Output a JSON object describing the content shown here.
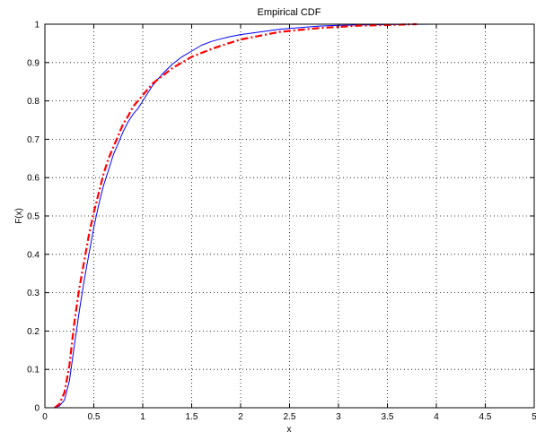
{
  "chart_data": {
    "type": "line",
    "title": "Empirical CDF",
    "xlabel": "x",
    "ylabel": "F(x)",
    "xlim": [
      0,
      5
    ],
    "ylim": [
      0,
      1
    ],
    "xticks": [
      "0",
      "0.5",
      "1",
      "1.5",
      "2",
      "2.5",
      "3",
      "3.5",
      "4",
      "4.5",
      "5"
    ],
    "yticks": [
      "0",
      "0.1",
      "0.2",
      "0.3",
      "0.4",
      "0.5",
      "0.6",
      "0.7",
      "0.8",
      "0.9",
      "1"
    ],
    "grid": true,
    "legend": "none",
    "series": [
      {
        "color": "#0000ff",
        "style": "solid",
        "x": [
          0.1,
          0.15,
          0.2,
          0.25,
          0.3,
          0.35,
          0.4,
          0.45,
          0.5,
          0.55,
          0.6,
          0.65,
          0.7,
          0.75,
          0.8,
          0.85,
          0.9,
          0.95,
          1.0,
          1.1,
          1.2,
          1.3,
          1.4,
          1.5,
          1.6,
          1.7,
          1.8,
          1.9,
          2.0,
          2.2,
          2.4,
          2.6,
          2.8,
          3.0,
          3.2,
          3.5,
          4.0,
          4.5
        ],
        "y": [
          0.0,
          0.005,
          0.02,
          0.07,
          0.16,
          0.25,
          0.33,
          0.4,
          0.47,
          0.53,
          0.58,
          0.62,
          0.66,
          0.69,
          0.72,
          0.745,
          0.765,
          0.78,
          0.8,
          0.84,
          0.87,
          0.895,
          0.915,
          0.93,
          0.945,
          0.955,
          0.962,
          0.968,
          0.973,
          0.98,
          0.987,
          0.991,
          0.995,
          0.997,
          0.998,
          0.999,
          1.0,
          1.0
        ]
      },
      {
        "color": "#ff0000",
        "style": "dashdot",
        "x": [
          0.1,
          0.15,
          0.2,
          0.25,
          0.3,
          0.35,
          0.4,
          0.45,
          0.5,
          0.55,
          0.6,
          0.65,
          0.7,
          0.75,
          0.8,
          0.85,
          0.9,
          0.95,
          1.0,
          1.1,
          1.2,
          1.3,
          1.4,
          1.5,
          1.6,
          1.7,
          1.8,
          1.9,
          2.0,
          2.2,
          2.4,
          2.6,
          2.8,
          3.0,
          3.2,
          3.5,
          3.8
        ],
        "y": [
          0.0,
          0.01,
          0.04,
          0.11,
          0.22,
          0.31,
          0.38,
          0.45,
          0.51,
          0.56,
          0.61,
          0.65,
          0.68,
          0.71,
          0.74,
          0.76,
          0.785,
          0.8,
          0.815,
          0.845,
          0.865,
          0.885,
          0.9,
          0.915,
          0.925,
          0.935,
          0.944,
          0.952,
          0.96,
          0.97,
          0.98,
          0.985,
          0.99,
          0.993,
          0.996,
          0.998,
          1.0
        ]
      }
    ]
  }
}
